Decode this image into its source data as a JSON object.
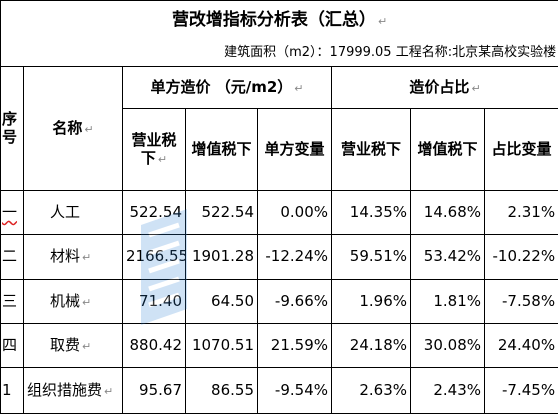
{
  "title": "营改增指标分析表（汇总）",
  "info": "建筑面积（m2）：17999.05 工程名称:北京某高校实验楼",
  "headers": {
    "seq": "序号",
    "name": "名称",
    "unit_cost_group": "单方造价 （元/m2）",
    "share_group": "造价占比",
    "business_tax": "营业税下",
    "vat": "增值税下",
    "unit_change": "单方变量",
    "business_tax_2": "营业税下",
    "vat_2": "增值税下",
    "share_change": "占比变量"
  },
  "rows": [
    {
      "seq": "一",
      "name": "人工",
      "bt": "522.54",
      "vat": "522.54",
      "change": "0.00%",
      "bt_share": "14.35%",
      "vat_share": "14.68%",
      "share_change": "2.31%"
    },
    {
      "seq": "二",
      "name": "材料",
      "bt": "2166.55",
      "vat": "1901.28",
      "change": "-12.24%",
      "bt_share": "59.51%",
      "vat_share": "53.42%",
      "share_change": "-10.22%"
    },
    {
      "seq": "三",
      "name": "机械",
      "bt": "71.40",
      "vat": "64.50",
      "change": "-9.66%",
      "bt_share": "1.96%",
      "vat_share": "1.81%",
      "share_change": "-7.58%"
    },
    {
      "seq": "四",
      "name": "取费",
      "bt": "880.42",
      "vat": "1070.51",
      "change": "21.59%",
      "bt_share": "24.18%",
      "vat_share": "30.08%",
      "share_change": "24.40%"
    },
    {
      "seq": "1",
      "name": "组织措施费",
      "bt": "95.67",
      "vat": "86.55",
      "change": "-9.54%",
      "bt_share": "2.63%",
      "vat_share": "2.43%",
      "share_change": "-7.45%"
    }
  ],
  "paragraph_mark": "↵",
  "colors": {
    "border": "#000000",
    "watermark": "#2a7fd4",
    "paragraph_mark": "#888888"
  }
}
